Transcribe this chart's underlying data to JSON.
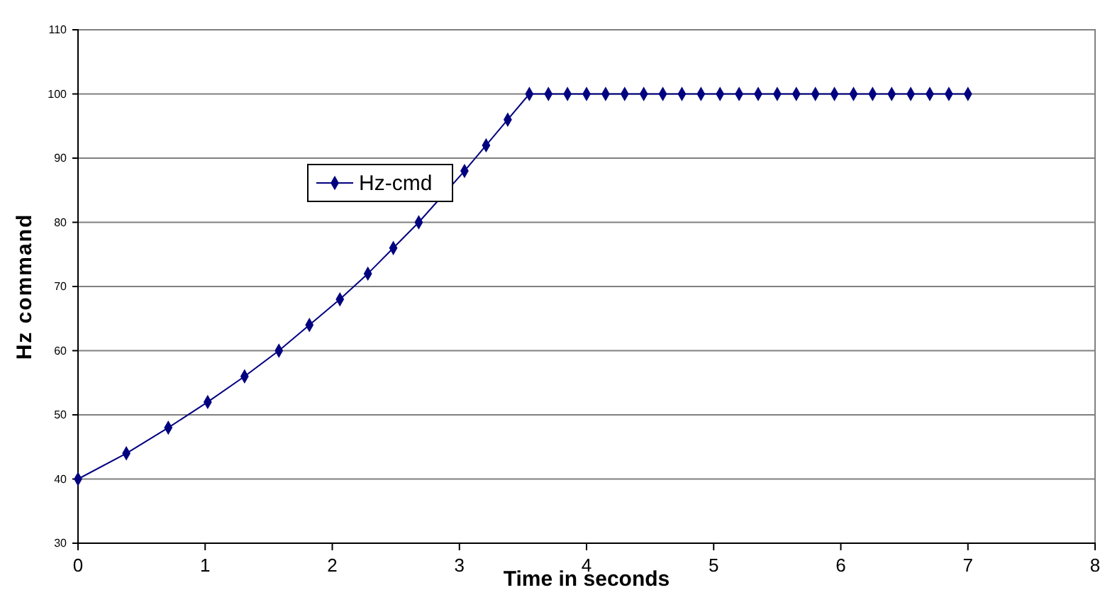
{
  "chart_data": {
    "type": "line",
    "xlabel": "Time in seconds",
    "ylabel": "Hz command",
    "xlim": [
      0,
      8
    ],
    "xticks": [
      0,
      1,
      2,
      3,
      4,
      5,
      6,
      7,
      8
    ],
    "ylim": [
      30,
      110
    ],
    "yticks": [
      30,
      40,
      50,
      60,
      70,
      80,
      90,
      100,
      110
    ],
    "grid": "y",
    "legend": "left",
    "marker": "diamond",
    "line_style": "solid",
    "series": [
      {
        "name": "Hz-cmd",
        "color": "#000080",
        "x": [
          0,
          0.38,
          0.71,
          1.02,
          1.31,
          1.58,
          1.82,
          2.06,
          2.28,
          2.48,
          2.68,
          2.87,
          3.04,
          3.21,
          3.38,
          3.55,
          3.7,
          3.85,
          4.0,
          4.15,
          4.3,
          4.45,
          4.6,
          4.75,
          4.9,
          5.05,
          5.2,
          5.35,
          5.5,
          5.65,
          5.8,
          5.95,
          6.1,
          6.25,
          6.4,
          6.55,
          6.7,
          6.85,
          7.0
        ],
        "values": [
          40,
          44,
          48,
          52,
          56,
          60,
          64,
          68,
          72,
          76,
          80,
          null,
          88,
          92,
          96,
          100,
          100,
          100,
          100,
          100,
          100,
          100,
          100,
          100,
          100,
          100,
          100,
          100,
          100,
          100,
          100,
          100,
          100,
          100,
          100,
          100,
          100,
          100,
          100
        ]
      }
    ]
  }
}
